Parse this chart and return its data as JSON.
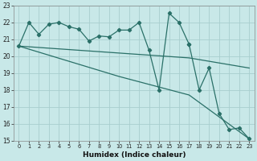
{
  "title": "",
  "xlabel": "Humidex (Indice chaleur)",
  "xlim": [
    -0.5,
    23.5
  ],
  "ylim": [
    15,
    23
  ],
  "background_color": "#c8e8e8",
  "grid_color": "#a8cece",
  "line_color": "#2a7068",
  "jagged_x": [
    0,
    1,
    2,
    3,
    4,
    5,
    6,
    7,
    8,
    9,
    10,
    11,
    12,
    13,
    14,
    15,
    16,
    17
  ],
  "jagged_y": [
    20.6,
    22.0,
    21.3,
    21.9,
    22.0,
    21.75,
    21.6,
    20.9,
    21.2,
    21.15,
    21.55,
    21.55,
    22.0,
    20.35,
    18.0,
    22.55,
    22.0,
    20.7
  ],
  "right_x": [
    17,
    18,
    19,
    20,
    21,
    22,
    23
  ],
  "right_y": [
    20.7,
    18.0,
    19.3,
    16.6,
    15.65,
    15.75,
    15.1
  ],
  "trend1_x": [
    0,
    17,
    23
  ],
  "trend1_y": [
    20.6,
    19.9,
    19.3
  ],
  "trend2_x": [
    0,
    10,
    17,
    23
  ],
  "trend2_y": [
    20.6,
    18.8,
    17.7,
    15.1
  ]
}
